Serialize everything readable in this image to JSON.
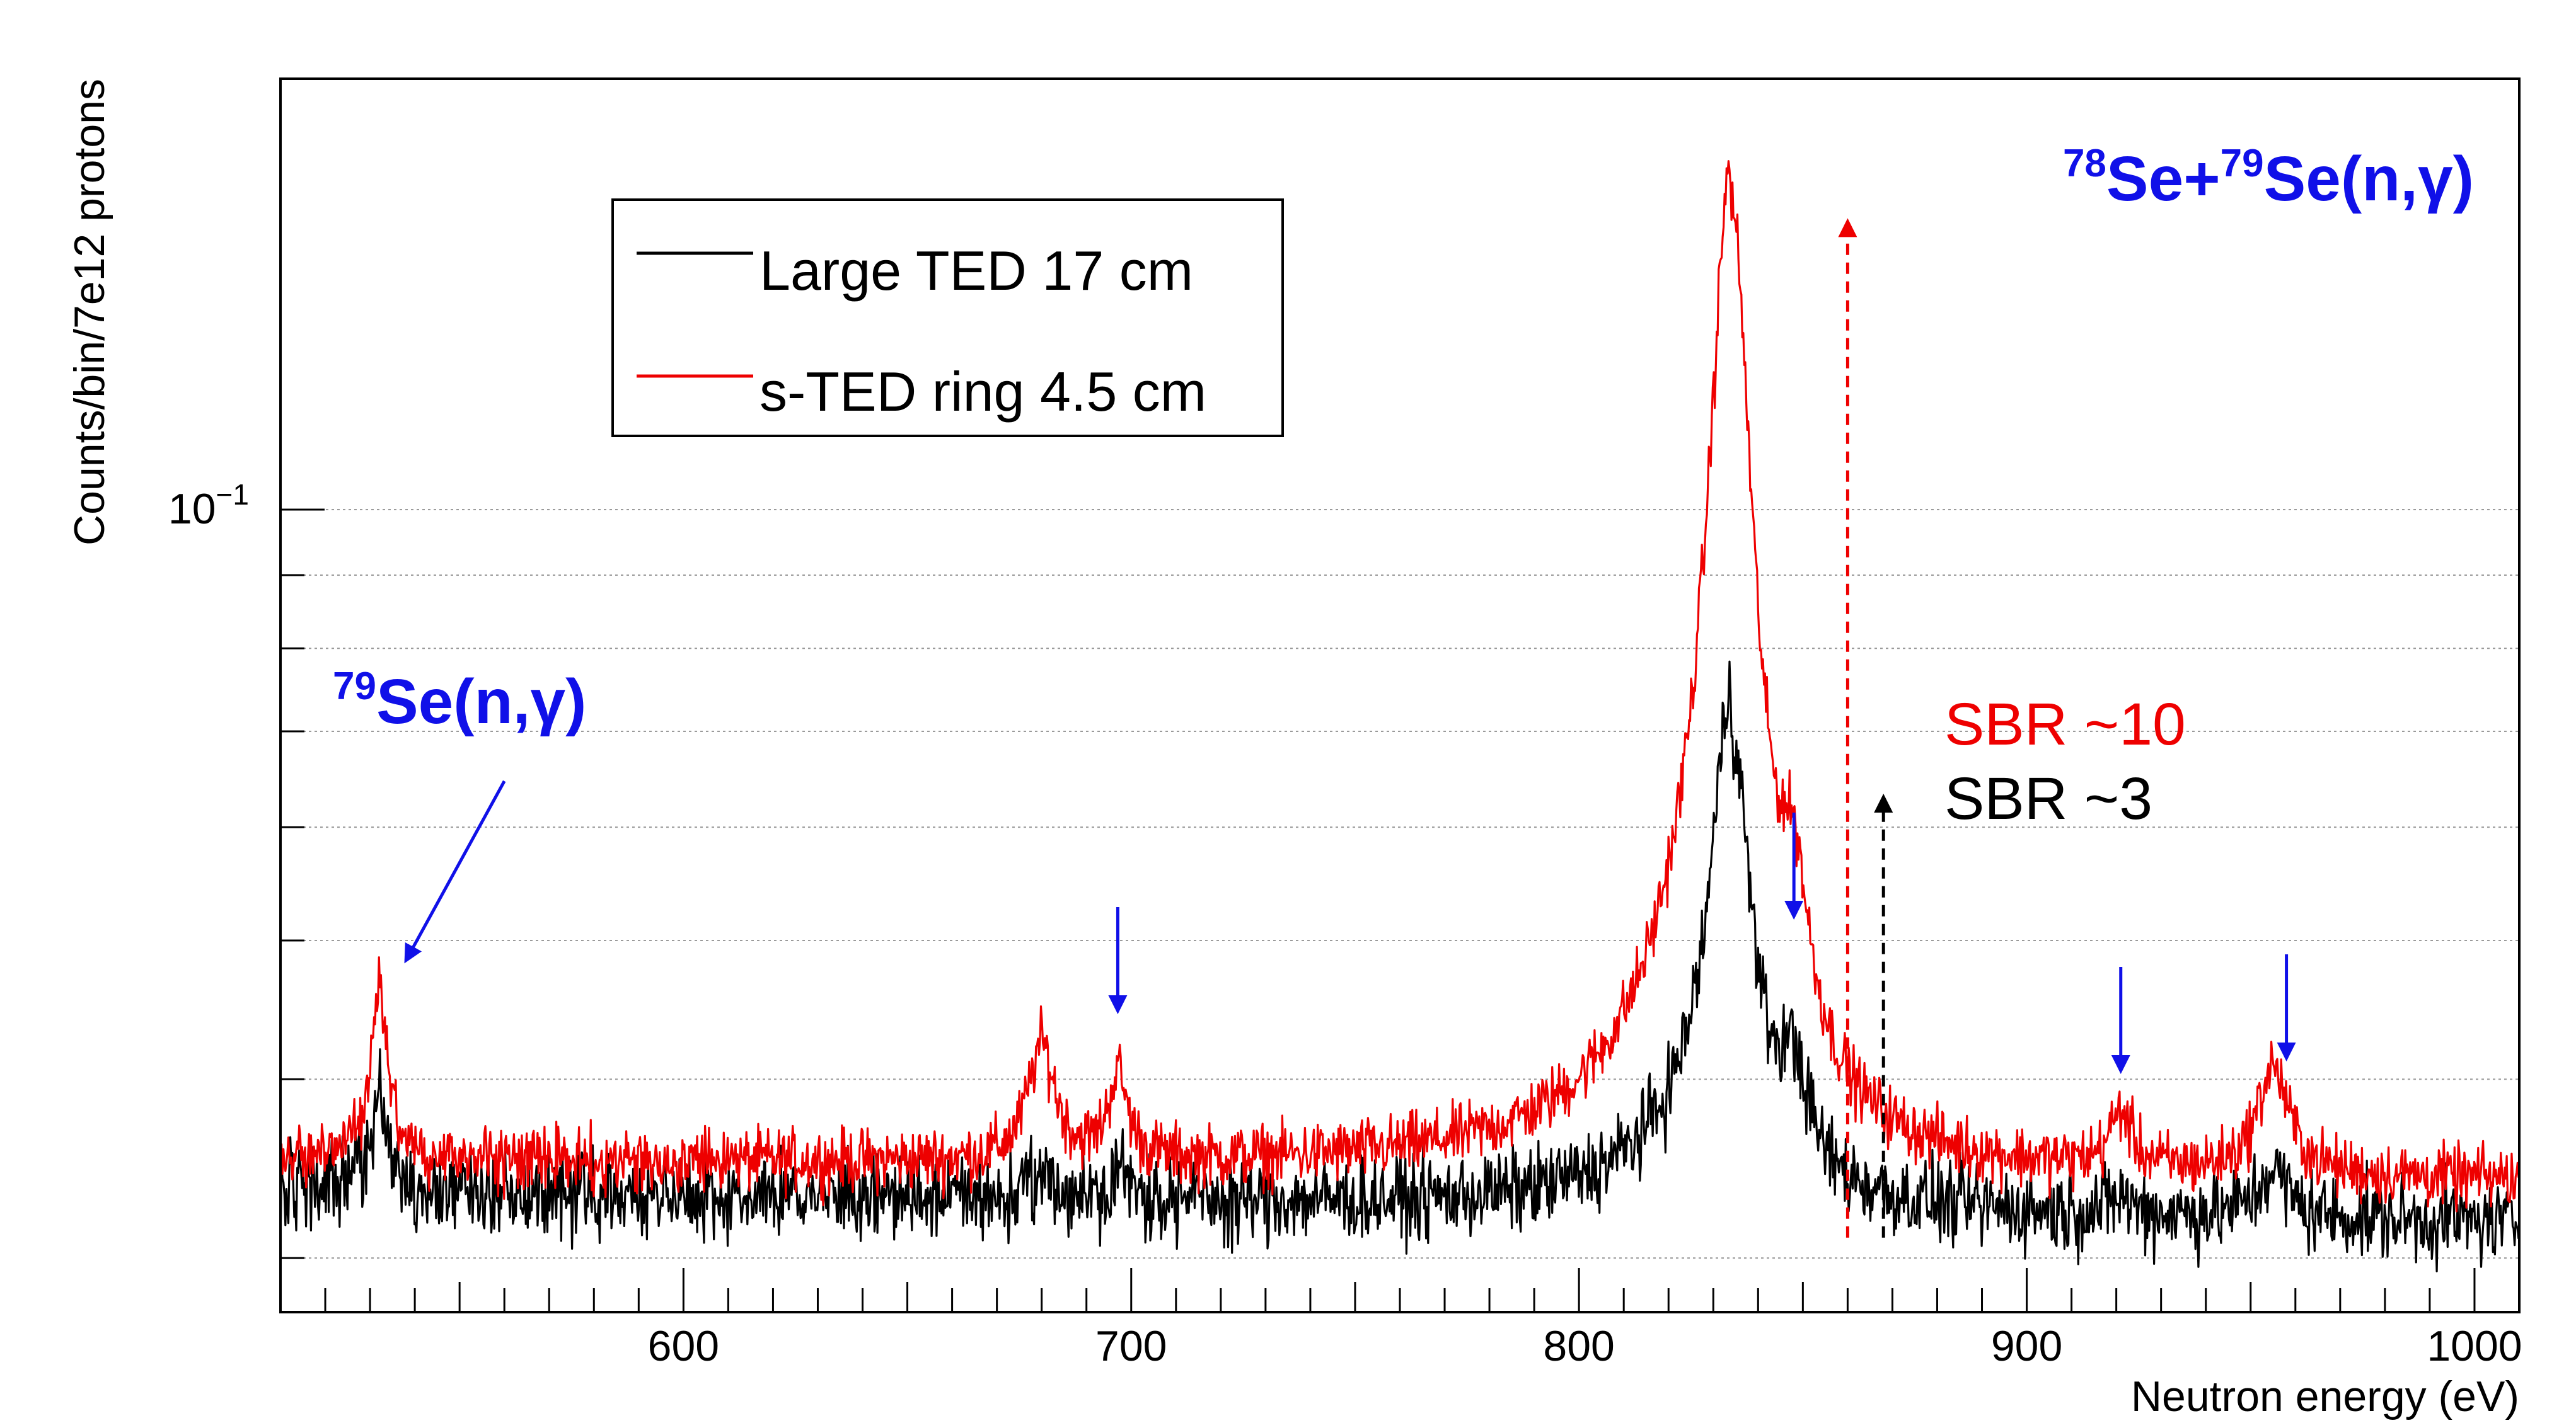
{
  "chart_data": {
    "type": "line",
    "xlabel": "Neutron energy (eV)",
    "ylabel": "Counts/bin/7e12 protons",
    "xlim": [
      510,
      1010
    ],
    "ylim": [
      0.0275,
      0.2
    ],
    "yscale": "log",
    "x_ticks": [
      {
        "value": 600,
        "label": "600"
      },
      {
        "value": 700,
        "label": "700"
      },
      {
        "value": 800,
        "label": "800"
      },
      {
        "value": 900,
        "label": "900"
      },
      {
        "value": 1000,
        "label": "1000"
      }
    ],
    "y_ticks": [
      {
        "value": 0.1,
        "base": "10",
        "exp": "−1"
      }
    ],
    "grid": true,
    "legend": {
      "position": "top-left",
      "entries": [
        {
          "label": "Large TED 17 cm",
          "color": "#000000"
        },
        {
          "label": "s-TED ring 4.5 cm",
          "color": "#ee0000"
        }
      ]
    },
    "series": [
      {
        "name": "Large TED 17 cm",
        "color": "#000000",
        "baseline": 0.0335,
        "baseline_slope": -3.5e-06,
        "noise": 0.06,
        "peaks": [
          {
            "x": 532,
            "amp": 0.0055,
            "width": 2.2
          },
          {
            "x": 680,
            "amp": 0.0012,
            "width": 3
          },
          {
            "x": 697,
            "amp": 0.0017,
            "width": 2.5
          },
          {
            "x": 834,
            "amp": 0.036,
            "width": 4.5,
            "tail": 0.0065,
            "tail_width": 16
          },
          {
            "x": 848,
            "amp": 0.0057,
            "width": 3.5
          },
          {
            "x": 921,
            "amp": 0.0009,
            "width": 3
          },
          {
            "x": 955,
            "amp": 0.0025,
            "width": 4
          }
        ]
      },
      {
        "name": "s-TED ring 4.5 cm",
        "color": "#ee0000",
        "baseline": 0.0352,
        "baseline_slope": -2.5e-06,
        "noise": 0.045,
        "peaks": [
          {
            "x": 532,
            "amp": 0.0115,
            "width": 2.2
          },
          {
            "x": 680,
            "amp": 0.0072,
            "width": 3.5
          },
          {
            "x": 697,
            "amp": 0.0052,
            "width": 2.5
          },
          {
            "x": 834,
            "amp": 0.122,
            "width": 4.5,
            "tail": 0.018,
            "tail_width": 17
          },
          {
            "x": 848,
            "amp": 0.0115,
            "width": 3.5
          },
          {
            "x": 921,
            "amp": 0.0032,
            "width": 3
          },
          {
            "x": 955,
            "amp": 0.0065,
            "width": 4
          }
        ]
      }
    ],
    "annotations": {
      "title_main": "Se+",
      "title_sup1": "78",
      "title_sup2": "79",
      "title_tail": "Se(n,γ)",
      "se79_sup": "79",
      "se79_text": "Se(n,γ)",
      "sbr_red": "SBR ~10",
      "sbr_black": "SBR ~3",
      "sbr_red_color": "#ee0000",
      "sbr_black_color": "#000000",
      "arrow_color": "#1010e8",
      "resonance_arrows_at": [
        697,
        848,
        921,
        958
      ],
      "sbr_arrows": [
        {
          "x": 860,
          "from": 0.031,
          "to": 0.159,
          "color": "#ee0000"
        },
        {
          "x": 868,
          "from": 0.031,
          "to": 0.063,
          "color": "#000000"
        }
      ]
    }
  }
}
